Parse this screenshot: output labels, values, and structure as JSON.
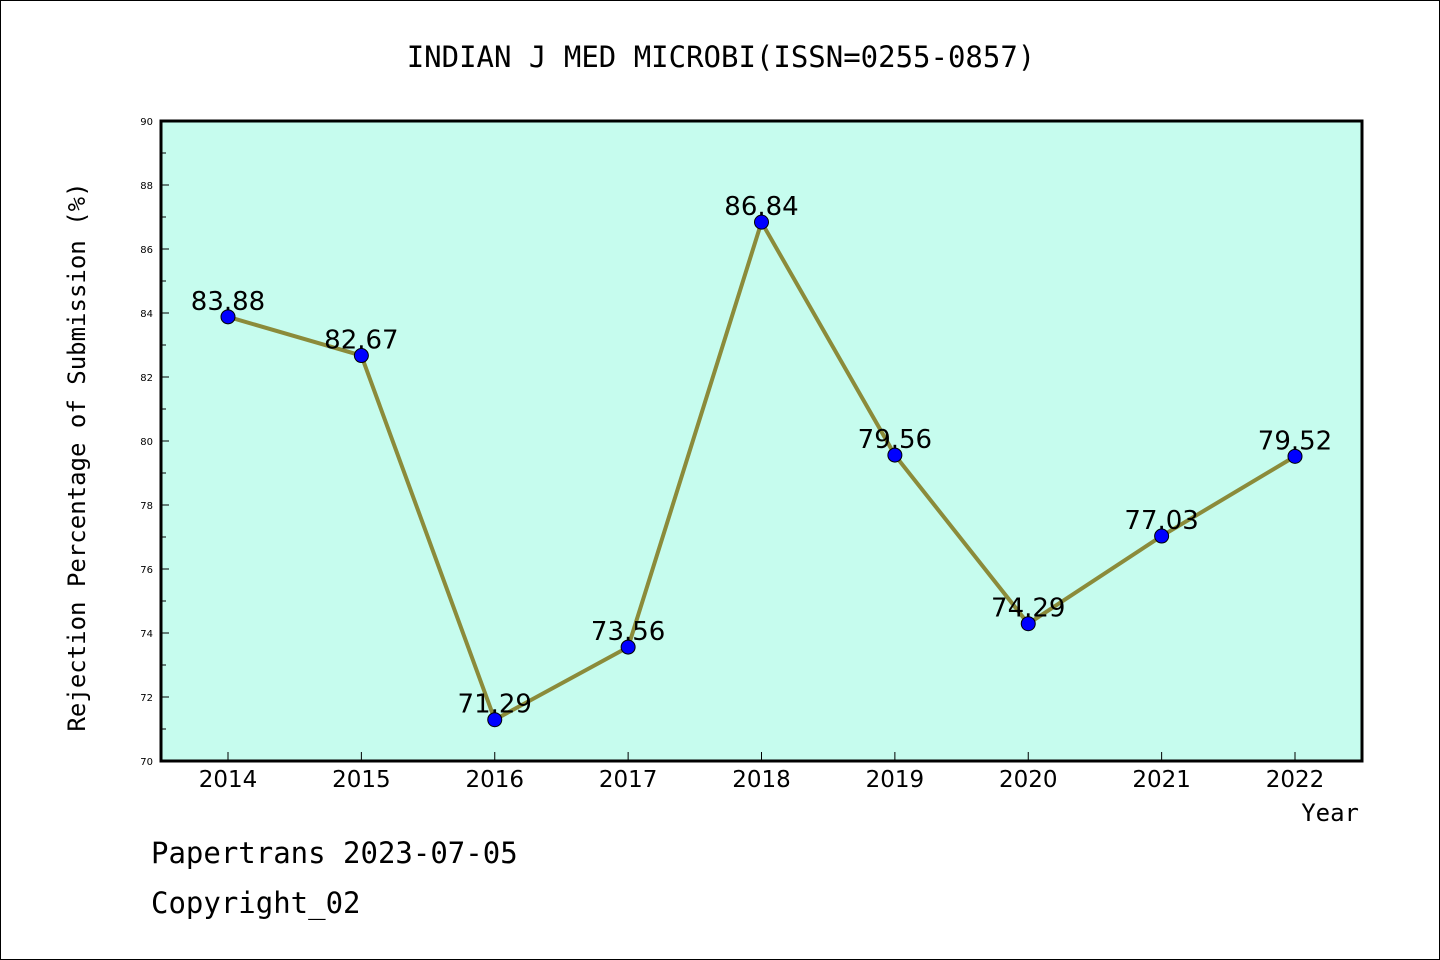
{
  "chart_data": {
    "type": "line",
    "title": "INDIAN J MED MICROBI(ISSN=0255-0857)",
    "xlabel": "Year",
    "ylabel": "Rejection Percentage of Submission (%)",
    "categories": [
      "2014",
      "2015",
      "2016",
      "2017",
      "2018",
      "2019",
      "2020",
      "2021",
      "2022"
    ],
    "series": [
      {
        "values": [
          83.88,
          82.67,
          71.29,
          73.56,
          86.84,
          79.56,
          74.29,
          77.03,
          79.52
        ],
        "labels": [
          "83.88",
          "82.67",
          "71.29",
          "73.56",
          "86.84",
          "79.56",
          "74.29",
          "77.03",
          "79.52"
        ]
      }
    ],
    "ylim": [
      70,
      90
    ],
    "yticks": [
      "70",
      "72",
      "74",
      "76",
      "78",
      "80",
      "82",
      "84",
      "86",
      "88",
      "90"
    ],
    "colors": {
      "plot_background": "#c6fcee",
      "line": "#8b8b3a",
      "marker": "#0000ff"
    },
    "grid": false,
    "legend": "none"
  },
  "footer": {
    "line1": "Papertrans 2023-07-05",
    "line2": "Copyright_02"
  }
}
